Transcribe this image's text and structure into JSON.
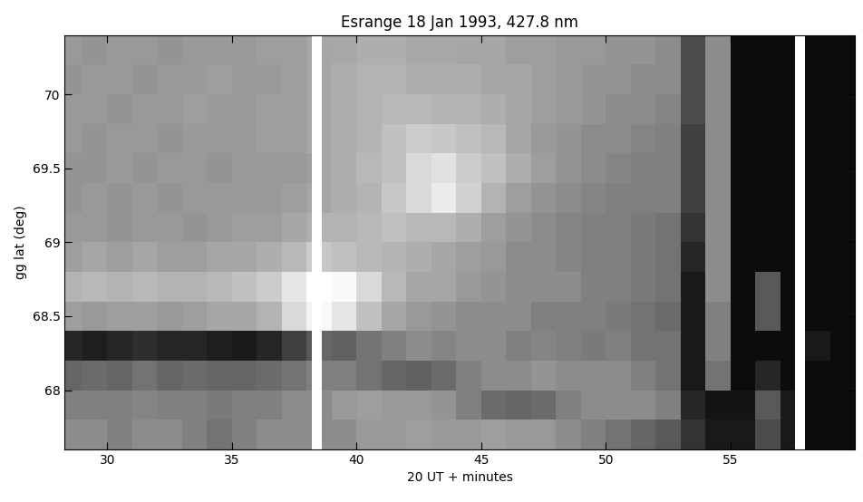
{
  "chart_data": {
    "type": "heatmap",
    "title": "Esrange 18 Jan 1993, 427.8 nm",
    "x_label": "20 UT + minutes",
    "y_label": "gg lat (deg)",
    "xlim": [
      28.3,
      60
    ],
    "ylim": [
      67.6,
      70.4
    ],
    "xticks": [
      30,
      35,
      40,
      45,
      50,
      55
    ],
    "yticks": [
      68,
      68.5,
      69,
      69.5,
      70
    ],
    "color": "gray",
    "cell_range": [
      0,
      1
    ],
    "x_edges": [
      28.3,
      29,
      30,
      31,
      32,
      33,
      34,
      35,
      36,
      37,
      38,
      38.2,
      38.6,
      39,
      40,
      41,
      42,
      43,
      44,
      45,
      46,
      47,
      48,
      49,
      50,
      51,
      52,
      53,
      54,
      55,
      56,
      57,
      57.6,
      58,
      59,
      60
    ],
    "y_edges": [
      67.6,
      67.8,
      68.0,
      68.2,
      68.4,
      68.6,
      68.8,
      69.0,
      69.2,
      69.4,
      69.6,
      69.8,
      70.0,
      70.2,
      70.4
    ],
    "cells": [
      [
        0.55,
        0.55,
        0.5,
        0.55,
        0.55,
        0.5,
        0.45,
        0.5,
        0.55,
        0.55,
        0.55,
        null,
        0.55,
        0.55,
        0.6,
        0.6,
        0.62,
        0.6,
        0.6,
        0.62,
        0.6,
        0.6,
        0.55,
        0.5,
        0.45,
        0.4,
        0.35,
        0.2,
        0.1,
        0.1,
        0.3,
        0.1,
        null,
        0.05,
        0.05
      ],
      [
        0.5,
        0.5,
        0.5,
        0.52,
        0.5,
        0.5,
        0.48,
        0.5,
        0.5,
        0.55,
        0.55,
        null,
        0.55,
        0.6,
        0.62,
        0.6,
        0.6,
        0.58,
        0.5,
        0.42,
        0.4,
        0.42,
        0.5,
        0.55,
        0.55,
        0.55,
        0.5,
        0.15,
        0.08,
        0.08,
        0.35,
        0.1,
        null,
        0.05,
        0.05
      ],
      [
        0.4,
        0.42,
        0.4,
        0.45,
        0.4,
        0.42,
        0.4,
        0.4,
        0.42,
        0.45,
        0.5,
        null,
        0.5,
        0.5,
        0.45,
        0.4,
        0.38,
        0.42,
        0.5,
        0.55,
        0.55,
        0.58,
        0.55,
        0.55,
        0.55,
        0.5,
        0.45,
        0.1,
        0.45,
        0.05,
        0.15,
        0.05,
        null,
        0.05,
        0.05
      ],
      [
        0.15,
        0.12,
        0.15,
        0.18,
        0.15,
        0.15,
        0.12,
        0.1,
        0.15,
        0.25,
        0.35,
        null,
        0.4,
        0.38,
        0.45,
        0.5,
        0.55,
        0.52,
        0.55,
        0.55,
        0.5,
        0.52,
        0.5,
        0.48,
        0.5,
        0.45,
        0.45,
        0.1,
        0.5,
        0.05,
        0.05,
        0.05,
        null,
        0.1,
        0.05
      ],
      [
        0.62,
        0.6,
        0.62,
        0.62,
        0.6,
        0.62,
        0.65,
        0.65,
        0.7,
        0.85,
        0.95,
        null,
        0.97,
        0.9,
        0.75,
        0.65,
        0.6,
        0.58,
        0.55,
        0.55,
        0.55,
        0.5,
        0.5,
        0.5,
        0.48,
        0.45,
        0.42,
        0.1,
        0.5,
        0.05,
        0.35,
        0.05,
        null,
        0.05,
        0.05
      ],
      [
        0.7,
        0.72,
        0.7,
        0.72,
        0.7,
        0.7,
        0.72,
        0.75,
        0.8,
        0.9,
        1.0,
        null,
        1.0,
        0.98,
        0.85,
        0.72,
        0.65,
        0.65,
        0.6,
        0.58,
        0.55,
        0.55,
        0.55,
        0.5,
        0.5,
        0.48,
        0.45,
        0.1,
        0.55,
        0.05,
        0.35,
        0.05,
        null,
        0.05,
        0.05
      ],
      [
        0.62,
        0.65,
        0.62,
        0.65,
        0.62,
        0.62,
        0.65,
        0.65,
        0.68,
        0.72,
        0.8,
        null,
        0.78,
        0.75,
        0.72,
        0.7,
        0.68,
        0.65,
        0.62,
        0.6,
        0.55,
        0.55,
        0.52,
        0.5,
        0.5,
        0.48,
        0.45,
        0.15,
        0.55,
        0.05,
        0.05,
        0.05,
        null,
        0.05,
        0.05
      ],
      [
        0.6,
        0.6,
        0.58,
        0.6,
        0.6,
        0.58,
        0.6,
        0.62,
        0.62,
        0.65,
        0.68,
        null,
        0.7,
        0.7,
        0.72,
        0.75,
        0.72,
        0.72,
        0.68,
        0.62,
        0.58,
        0.55,
        0.52,
        0.5,
        0.5,
        0.48,
        0.45,
        0.2,
        0.55,
        0.05,
        0.05,
        0.05,
        null,
        0.05,
        0.05
      ],
      [
        0.58,
        0.6,
        0.58,
        0.6,
        0.58,
        0.6,
        0.6,
        0.6,
        0.6,
        0.62,
        0.65,
        null,
        0.65,
        0.68,
        0.7,
        0.78,
        0.85,
        0.92,
        0.82,
        0.7,
        0.62,
        0.58,
        0.55,
        0.52,
        0.5,
        0.5,
        0.5,
        0.25,
        0.55,
        0.05,
        0.05,
        0.05,
        null,
        0.05,
        0.05
      ],
      [
        0.58,
        0.58,
        0.6,
        0.58,
        0.6,
        0.6,
        0.58,
        0.6,
        0.6,
        0.6,
        0.62,
        null,
        0.65,
        0.68,
        0.72,
        0.75,
        0.85,
        0.88,
        0.8,
        0.75,
        0.68,
        0.62,
        0.58,
        0.55,
        0.52,
        0.5,
        0.5,
        0.25,
        0.55,
        0.05,
        0.05,
        0.05,
        null,
        0.05,
        0.05
      ],
      [
        0.6,
        0.58,
        0.6,
        0.6,
        0.58,
        0.6,
        0.6,
        0.6,
        0.62,
        0.62,
        0.65,
        null,
        0.65,
        0.68,
        0.7,
        0.75,
        0.8,
        0.78,
        0.75,
        0.72,
        0.65,
        0.6,
        0.58,
        0.55,
        0.55,
        0.52,
        0.5,
        0.25,
        0.55,
        0.05,
        0.05,
        0.05,
        null,
        0.05,
        0.05
      ],
      [
        0.6,
        0.6,
        0.58,
        0.6,
        0.6,
        0.62,
        0.6,
        0.6,
        0.62,
        0.62,
        0.65,
        null,
        0.65,
        0.68,
        0.7,
        0.72,
        0.72,
        0.7,
        0.7,
        0.68,
        0.65,
        0.62,
        0.6,
        0.58,
        0.55,
        0.55,
        0.52,
        0.3,
        0.55,
        0.05,
        0.05,
        0.05,
        null,
        0.05,
        0.05
      ],
      [
        0.58,
        0.6,
        0.6,
        0.58,
        0.6,
        0.6,
        0.62,
        0.6,
        0.6,
        0.62,
        0.65,
        null,
        0.65,
        0.68,
        0.7,
        0.7,
        0.68,
        0.68,
        0.68,
        0.65,
        0.65,
        0.62,
        0.6,
        0.58,
        0.58,
        0.55,
        0.55,
        0.3,
        0.55,
        0.05,
        0.05,
        0.05,
        null,
        0.05,
        0.05
      ],
      [
        0.6,
        0.58,
        0.6,
        0.6,
        0.58,
        0.6,
        0.6,
        0.6,
        0.62,
        0.62,
        0.65,
        null,
        0.65,
        0.66,
        0.68,
        0.68,
        0.66,
        0.66,
        0.65,
        0.65,
        0.62,
        0.62,
        0.6,
        0.6,
        0.58,
        0.58,
        0.55,
        0.3,
        0.55,
        0.05,
        0.05,
        0.05,
        null,
        0.05,
        0.05
      ]
    ]
  }
}
